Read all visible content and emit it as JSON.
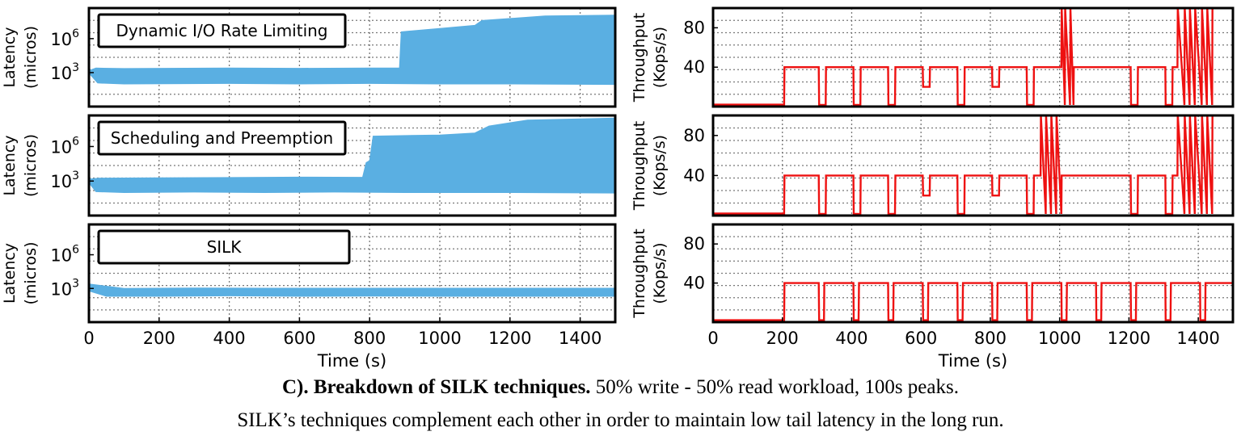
{
  "caption": {
    "bold": "C). Breakdown of SILK techniques.",
    "rest": " 50% write - 50% read workload, 100s peaks.",
    "line2": "SILK’s techniques complement each other in order to maintain low tail latency in the long run."
  },
  "colors": {
    "latency": "#5aafe2",
    "throughput": "#ee1111",
    "grid": "#777777",
    "frame": "#000000"
  },
  "chart_data": [
    {
      "type": "area",
      "panel": "latency-dynamic-io",
      "title": "Dynamic I/O Rate Limiting",
      "ylabel": [
        "Latency",
        "(micros)"
      ],
      "yscale": "log",
      "yticks": [
        {
          "value": 1000,
          "base": "10",
          "exp": "3"
        },
        {
          "value": 1000000,
          "base": "10",
          "exp": "6"
        }
      ],
      "ylim": [
        1,
        500000000
      ],
      "xlim": [
        0,
        1500
      ],
      "grid": true,
      "series": [
        {
          "upper": [
            [
              0,
              1500
            ],
            [
              20,
              2500
            ],
            [
              100,
              2300
            ],
            [
              400,
              2500
            ],
            [
              600,
              2400
            ],
            [
              800,
              2500
            ],
            [
              885,
              2500
            ],
            [
              890,
              4000000
            ],
            [
              1000,
              8000000
            ],
            [
              1100,
              15000000
            ],
            [
              1120,
              40000000
            ],
            [
              1300,
              100000000
            ],
            [
              1500,
              120000000
            ]
          ],
          "lower": [
            [
              0,
              900
            ],
            [
              25,
              120
            ],
            [
              100,
              100
            ],
            [
              400,
              110
            ],
            [
              600,
              100
            ],
            [
              800,
              110
            ],
            [
              1000,
              100
            ],
            [
              1200,
              100
            ],
            [
              1500,
              90
            ]
          ]
        }
      ]
    },
    {
      "type": "area",
      "panel": "latency-scheduling",
      "title": "Scheduling and Preemption",
      "ylabel": [
        "Latency",
        "(micros)"
      ],
      "yscale": "log",
      "yticks": [
        {
          "value": 1000,
          "base": "10",
          "exp": "3"
        },
        {
          "value": 1000000,
          "base": "10",
          "exp": "6"
        }
      ],
      "ylim": [
        1,
        500000000
      ],
      "xlim": [
        0,
        1500
      ],
      "grid": true,
      "series": [
        {
          "upper": [
            [
              0,
              1500
            ],
            [
              30,
              1800
            ],
            [
              200,
              1900
            ],
            [
              400,
              2000
            ],
            [
              600,
              2200
            ],
            [
              780,
              2100
            ],
            [
              790,
              40000
            ],
            [
              800,
              60000
            ],
            [
              810,
              8000000
            ],
            [
              1000,
              10000000
            ],
            [
              1100,
              15000000
            ],
            [
              1140,
              60000000
            ],
            [
              1250,
              200000000
            ],
            [
              1500,
              300000000
            ]
          ],
          "lower": [
            [
              0,
              700
            ],
            [
              20,
              120
            ],
            [
              100,
              100
            ],
            [
              300,
              110
            ],
            [
              500,
              100
            ],
            [
              700,
              110
            ],
            [
              900,
              100
            ],
            [
              1200,
              100
            ],
            [
              1500,
              90
            ]
          ]
        }
      ]
    },
    {
      "type": "area",
      "panel": "latency-silk",
      "title": "SILK",
      "ylabel": [
        "Latency",
        "(micros)"
      ],
      "yscale": "log",
      "yticks": [
        {
          "value": 1000,
          "base": "10",
          "exp": "3"
        },
        {
          "value": 1000000,
          "base": "10",
          "exp": "6"
        }
      ],
      "ylim": [
        1,
        500000000
      ],
      "xlim": [
        0,
        1500
      ],
      "xlabel": "Time (s)",
      "xticks": [
        0,
        200,
        400,
        600,
        800,
        1000,
        1200,
        1400
      ],
      "grid": true,
      "series": [
        {
          "upper": [
            [
              0,
              2500
            ],
            [
              100,
              1000
            ],
            [
              300,
              1100
            ],
            [
              500,
              1050
            ],
            [
              700,
              1050
            ],
            [
              900,
              1050
            ],
            [
              1100,
              1050
            ],
            [
              1300,
              1050
            ],
            [
              1500,
              1050
            ]
          ],
          "lower": [
            [
              0,
              600
            ],
            [
              50,
              200
            ],
            [
              200,
              200
            ],
            [
              400,
              220
            ],
            [
              600,
              200
            ],
            [
              800,
              210
            ],
            [
              1000,
              200
            ],
            [
              1200,
              200
            ],
            [
              1500,
              200
            ]
          ]
        }
      ]
    },
    {
      "type": "line",
      "panel": "throughput-dynamic-io",
      "ylabel": [
        "Throughput",
        "(Kops/s)"
      ],
      "ylim": [
        0,
        100
      ],
      "yticks": [
        40,
        80
      ],
      "xlim": [
        0,
        1500
      ],
      "grid": true,
      "series": [
        {
          "x": [
            0,
            205,
            206,
            305,
            306,
            325,
            326,
            405,
            406,
            425,
            426,
            505,
            506,
            525,
            526,
            605,
            606,
            625,
            626,
            705,
            706,
            725,
            726,
            805,
            806,
            825,
            826,
            905,
            906,
            925,
            926,
            1005,
            1006,
            1015,
            1016,
            1030,
            1031,
            1040,
            1041,
            1205,
            1206,
            1225,
            1226,
            1305,
            1306,
            1325,
            1326,
            1340,
            1341,
            1360,
            1361,
            1375,
            1376,
            1390,
            1391,
            1410,
            1411,
            1425,
            1426,
            1440,
            1441,
            1500
          ],
          "y": [
            2,
            2,
            40,
            40,
            0,
            0,
            40,
            40,
            0,
            0,
            40,
            40,
            0,
            0,
            40,
            40,
            20,
            20,
            40,
            40,
            0,
            0,
            40,
            40,
            20,
            20,
            40,
            40,
            0,
            0,
            40,
            40,
            100,
            0,
            100,
            0,
            100,
            0,
            40,
            40,
            0,
            0,
            40,
            40,
            0,
            0,
            40,
            40,
            100,
            0,
            100,
            0,
            100,
            0,
            100,
            0,
            100,
            0,
            100,
            0,
            100,
            100
          ]
        }
      ]
    },
    {
      "type": "line",
      "panel": "throughput-scheduling",
      "ylabel": [
        "Throughput",
        "(Kops/s)"
      ],
      "ylim": [
        0,
        100
      ],
      "yticks": [
        40,
        80
      ],
      "xlim": [
        0,
        1500
      ],
      "grid": true,
      "series": [
        {
          "x": [
            0,
            205,
            206,
            305,
            306,
            325,
            326,
            405,
            406,
            425,
            426,
            505,
            506,
            525,
            526,
            605,
            606,
            625,
            626,
            705,
            706,
            725,
            726,
            805,
            806,
            825,
            826,
            905,
            906,
            925,
            926,
            945,
            946,
            960,
            961,
            975,
            976,
            990,
            991,
            1005,
            1006,
            1205,
            1206,
            1225,
            1226,
            1305,
            1306,
            1325,
            1326,
            1340,
            1341,
            1360,
            1361,
            1375,
            1376,
            1390,
            1391,
            1410,
            1411,
            1425,
            1426,
            1440,
            1441,
            1500
          ],
          "y": [
            2,
            2,
            40,
            40,
            0,
            0,
            40,
            40,
            0,
            0,
            40,
            40,
            0,
            0,
            40,
            40,
            20,
            20,
            40,
            40,
            0,
            0,
            40,
            40,
            20,
            20,
            40,
            40,
            0,
            0,
            40,
            40,
            100,
            0,
            100,
            0,
            100,
            0,
            100,
            0,
            40,
            40,
            0,
            0,
            40,
            40,
            0,
            0,
            40,
            40,
            100,
            0,
            100,
            0,
            100,
            0,
            100,
            0,
            100,
            0,
            100,
            0,
            100,
            100
          ]
        }
      ]
    },
    {
      "type": "line",
      "panel": "throughput-silk",
      "ylabel": [
        "Throughput",
        "(Kops/s)"
      ],
      "ylim": [
        0,
        100
      ],
      "yticks": [
        40,
        80
      ],
      "xlim": [
        0,
        1500
      ],
      "xlabel": "Time (s)",
      "xticks": [
        0,
        200,
        400,
        600,
        800,
        1000,
        1200,
        1400
      ],
      "grid": true,
      "series": [
        {
          "x": [
            0,
            205,
            206,
            305,
            306,
            320,
            321,
            405,
            406,
            420,
            421,
            505,
            506,
            520,
            521,
            605,
            606,
            620,
            621,
            705,
            706,
            720,
            721,
            805,
            806,
            820,
            821,
            905,
            906,
            920,
            921,
            1005,
            1006,
            1020,
            1021,
            1105,
            1106,
            1120,
            1121,
            1205,
            1206,
            1220,
            1221,
            1305,
            1306,
            1320,
            1321,
            1405,
            1406,
            1420,
            1421,
            1500
          ],
          "y": [
            2,
            2,
            40,
            40,
            2,
            2,
            40,
            40,
            2,
            2,
            40,
            40,
            2,
            2,
            40,
            40,
            2,
            2,
            40,
            40,
            2,
            2,
            40,
            40,
            2,
            2,
            40,
            40,
            2,
            2,
            40,
            40,
            2,
            2,
            40,
            40,
            2,
            2,
            40,
            40,
            2,
            2,
            40,
            40,
            2,
            2,
            40,
            40,
            2,
            2,
            40,
            40
          ]
        }
      ]
    }
  ]
}
